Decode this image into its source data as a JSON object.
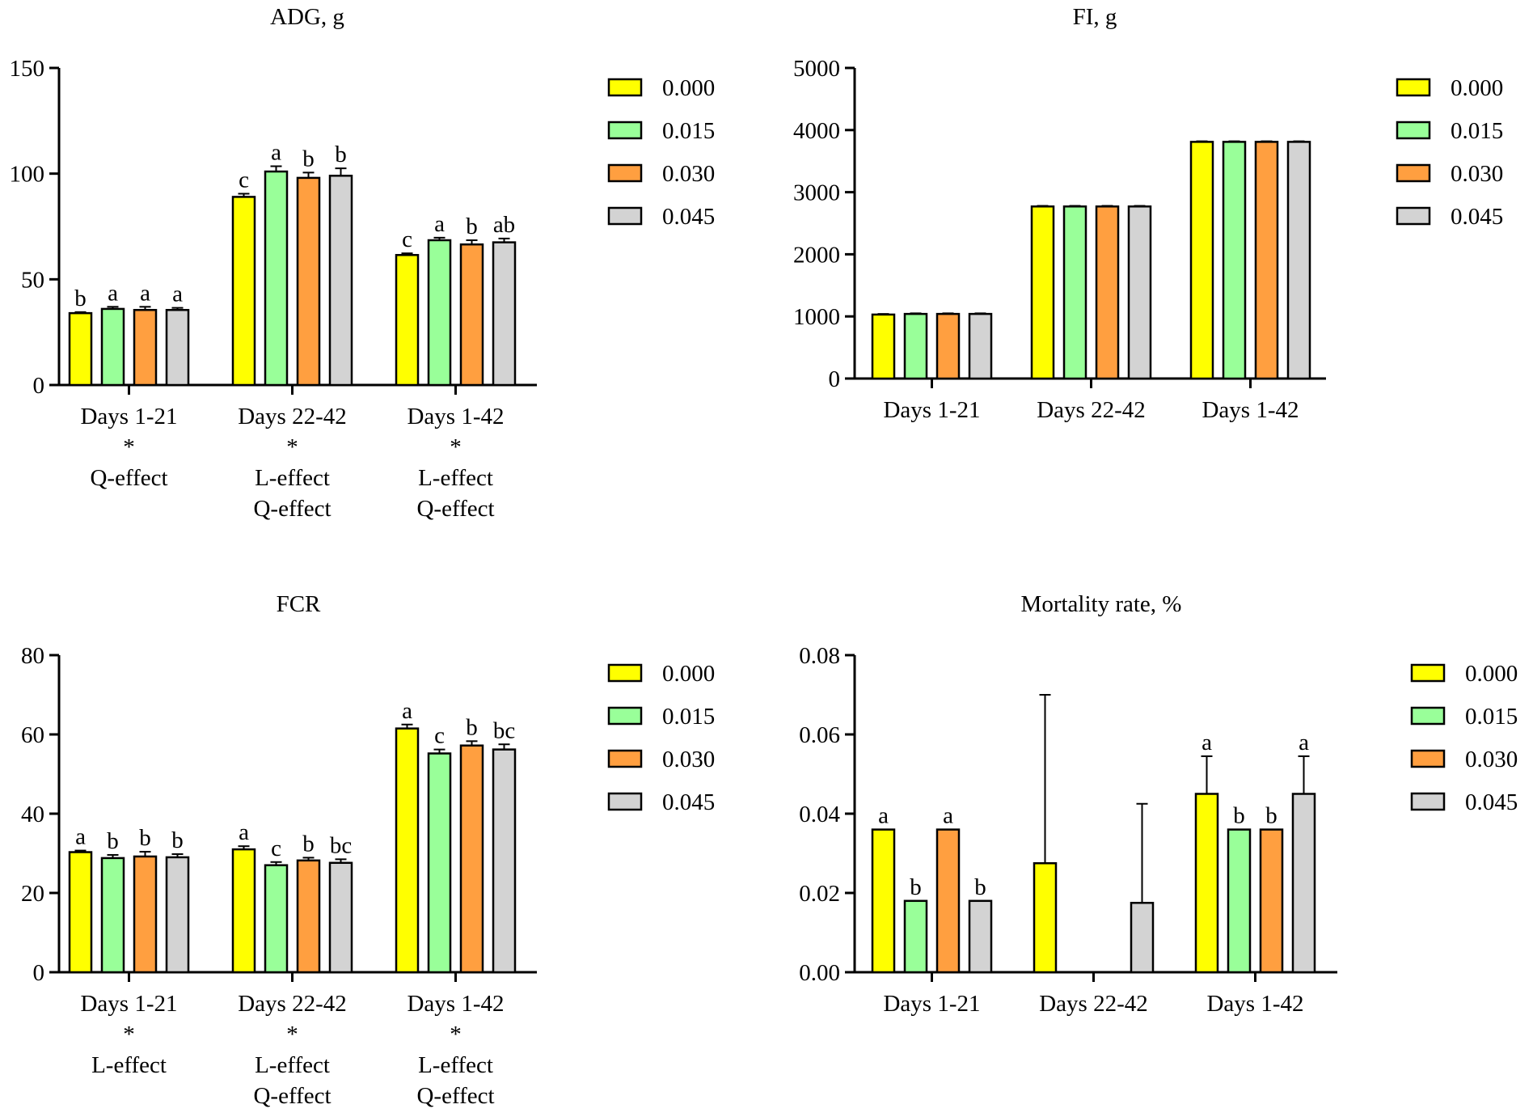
{
  "colors": {
    "series": [
      "#ffff00",
      "#99ff99",
      "#ff9f40",
      "#d3d3d3"
    ],
    "stroke": "#000000"
  },
  "chart_data": [
    {
      "type": "bar",
      "title": "ADG, g",
      "categories": [
        "Days 1-21",
        "Days 22-42",
        "Days 1-42"
      ],
      "category_notes": [
        [
          "*",
          "Q-effect"
        ],
        [
          "*",
          "L-effect",
          "Q-effect"
        ],
        [
          "*",
          "L-effect",
          "Q-effect"
        ]
      ],
      "series": [
        {
          "name": "0.000",
          "values": [
            34,
            89,
            61.5
          ],
          "errors": [
            0.5,
            1.5,
            0.8
          ],
          "letters": [
            "b",
            "c",
            "c"
          ]
        },
        {
          "name": "0.015",
          "values": [
            36,
            101,
            68.5
          ],
          "errors": [
            1,
            2.5,
            1.2
          ],
          "letters": [
            "a",
            "a",
            "a"
          ]
        },
        {
          "name": "0.030",
          "values": [
            35.5,
            98,
            66.5
          ],
          "errors": [
            1.5,
            2.5,
            2
          ],
          "letters": [
            "a",
            "b",
            "b"
          ]
        },
        {
          "name": "0.045",
          "values": [
            35.5,
            99,
            67.5
          ],
          "errors": [
            1,
            3.5,
            1.8
          ],
          "letters": [
            "a",
            "b",
            "ab"
          ]
        }
      ],
      "ylim": [
        0,
        150
      ],
      "yticks": [
        0,
        50,
        100,
        150
      ],
      "ytick_labels": [
        "0",
        "50",
        "100",
        "150"
      ],
      "legend": "right"
    },
    {
      "type": "bar",
      "title": "FI, g",
      "categories": [
        "Days 1-21",
        "Days 22-42",
        "Days 1-42"
      ],
      "category_notes": [
        [],
        [],
        []
      ],
      "series": [
        {
          "name": "0.000",
          "values": [
            1030,
            2770,
            3810
          ],
          "errors": [
            10,
            10,
            10
          ],
          "letters": [
            "",
            "",
            ""
          ]
        },
        {
          "name": "0.015",
          "values": [
            1040,
            2770,
            3810
          ],
          "errors": [
            10,
            10,
            10
          ],
          "letters": [
            "",
            "",
            ""
          ]
        },
        {
          "name": "0.030",
          "values": [
            1040,
            2770,
            3810
          ],
          "errors": [
            10,
            10,
            10
          ],
          "letters": [
            "",
            "",
            ""
          ]
        },
        {
          "name": "0.045",
          "values": [
            1040,
            2770,
            3810
          ],
          "errors": [
            10,
            10,
            10
          ],
          "letters": [
            "",
            "",
            ""
          ]
        }
      ],
      "ylim": [
        0,
        5000
      ],
      "yticks": [
        0,
        1000,
        2000,
        3000,
        4000,
        5000
      ],
      "ytick_labels": [
        "0",
        "1000",
        "2000",
        "3000",
        "4000",
        "5000"
      ],
      "legend": "right"
    },
    {
      "type": "bar",
      "title": "FCR",
      "categories": [
        "Days 1-21",
        "Days 22-42",
        "Days 1-42"
      ],
      "category_notes": [
        [
          "*",
          "L-effect"
        ],
        [
          "*",
          "L-effect",
          "Q-effect"
        ],
        [
          "*",
          "L-effect",
          "Q-effect"
        ]
      ],
      "series": [
        {
          "name": "0.000",
          "values": [
            30.3,
            31,
            61.5
          ],
          "errors": [
            0.4,
            0.8,
            1
          ],
          "letters": [
            "a",
            "a",
            "a"
          ]
        },
        {
          "name": "0.015",
          "values": [
            28.8,
            27,
            55.2
          ],
          "errors": [
            0.8,
            0.8,
            1
          ],
          "letters": [
            "b",
            "c",
            "c"
          ]
        },
        {
          "name": "0.030",
          "values": [
            29.2,
            28.2,
            57.2
          ],
          "errors": [
            1.2,
            0.7,
            1.1
          ],
          "letters": [
            "b",
            "b",
            "b"
          ]
        },
        {
          "name": "0.045",
          "values": [
            29,
            27.6,
            56.2
          ],
          "errors": [
            0.8,
            0.9,
            1.3
          ],
          "letters": [
            "b",
            "bc",
            "bc"
          ]
        }
      ],
      "ylim": [
        0,
        80
      ],
      "yticks": [
        0,
        20,
        40,
        60,
        80
      ],
      "ytick_labels": [
        "0",
        "20",
        "40",
        "60",
        "80"
      ],
      "legend": "right"
    },
    {
      "type": "bar",
      "title": "Mortality rate, %",
      "categories": [
        "Days 1-21",
        "Days 22-42",
        "Days 1-42"
      ],
      "category_notes": [
        [],
        [],
        []
      ],
      "series": [
        {
          "name": "0.000",
          "values": [
            0.036,
            0.0275,
            0.045
          ],
          "errors": [
            0,
            0.0425,
            0.0095
          ],
          "letters": [
            "a",
            "",
            "a"
          ]
        },
        {
          "name": "0.015",
          "values": [
            0.018,
            0,
            0.036
          ],
          "errors": [
            0,
            0,
            0
          ],
          "letters": [
            "b",
            "",
            "b"
          ]
        },
        {
          "name": "0.030",
          "values": [
            0.036,
            0,
            0.036
          ],
          "errors": [
            0,
            0,
            0
          ],
          "letters": [
            "a",
            "",
            "b"
          ]
        },
        {
          "name": "0.045",
          "values": [
            0.018,
            0.0175,
            0.045
          ],
          "errors": [
            0,
            0.025,
            0.0095
          ],
          "letters": [
            "b",
            "",
            "a"
          ]
        }
      ],
      "ylim": [
        0,
        0.08
      ],
      "yticks": [
        0,
        0.02,
        0.04,
        0.06,
        0.08
      ],
      "ytick_labels": [
        "0.00",
        "0.02",
        "0.04",
        "0.06",
        "0.08"
      ],
      "legend": "right"
    }
  ]
}
